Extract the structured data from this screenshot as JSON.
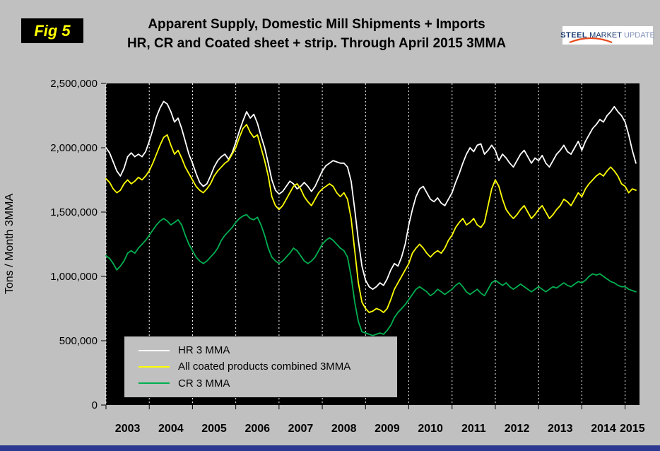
{
  "header": {
    "fig_label": "Fig 5",
    "title_line1": "Apparent Supply, Domestic Mill Shipments + Imports",
    "title_line2": "HR, CR and Coated sheet + strip. Through April 2015 3MMA"
  },
  "logo": {
    "word1": "STEEL",
    "word2": "MARKET",
    "word3": "UPDATE"
  },
  "y_axis_title": "Tons / Month 3MMA",
  "legend": {
    "items": [
      {
        "label": "HR 3 MMA",
        "color": "#ffffff"
      },
      {
        "label": "All coated products combined 3MMA",
        "color": "#ffff00"
      },
      {
        "label": "CR 3 MMA",
        "color": "#00b050"
      }
    ]
  },
  "colors": {
    "page_bg": "#c0c0c0",
    "plot_bg": "#000000",
    "gridline": "#ffffff",
    "bottom_bar": "#2b3990",
    "fig_badge_bg": "#000000",
    "fig_badge_text": "#ffff00",
    "logo_blue": "#16386e",
    "logo_swoosh": "#e8491d"
  },
  "chart_data": {
    "type": "line",
    "title": "Apparent Supply, Domestic Mill Shipments + Imports — HR, CR and Coated sheet + strip. Through April 2015 3MMA",
    "xlabel": "",
    "ylabel": "Tons / Month 3MMA",
    "ylim": [
      0,
      2500000
    ],
    "y_tick_step": 500000,
    "y_tick_labels": [
      "0",
      "500,000",
      "1,000,000",
      "1,500,000",
      "2,000,000",
      "2,500,000"
    ],
    "x_tick_labels": [
      "2003",
      "2004",
      "2005",
      "2006",
      "2007",
      "2008",
      "2009",
      "2010",
      "2011",
      "2012",
      "2013",
      "2014",
      "2015"
    ],
    "x_start": "2003-01",
    "x_end": "2015-04",
    "x_frequency": "monthly",
    "grid": "vertical-dashed",
    "legend_position": "inside-bottom-left",
    "unit": "tons/month",
    "series": [
      {
        "name": "HR 3 MMA",
        "color": "#ffffff",
        "values": [
          2000000,
          1960000,
          1890000,
          1820000,
          1780000,
          1840000,
          1930000,
          1960000,
          1930000,
          1950000,
          1930000,
          1970000,
          2050000,
          2140000,
          2240000,
          2310000,
          2360000,
          2340000,
          2280000,
          2200000,
          2230000,
          2150000,
          2050000,
          1950000,
          1880000,
          1800000,
          1730000,
          1700000,
          1720000,
          1780000,
          1850000,
          1900000,
          1930000,
          1950000,
          1910000,
          1960000,
          2040000,
          2130000,
          2210000,
          2280000,
          2230000,
          2260000,
          2190000,
          2090000,
          2000000,
          1880000,
          1750000,
          1670000,
          1640000,
          1660000,
          1700000,
          1740000,
          1720000,
          1680000,
          1700000,
          1730000,
          1700000,
          1660000,
          1700000,
          1760000,
          1820000,
          1860000,
          1880000,
          1900000,
          1890000,
          1880000,
          1880000,
          1850000,
          1740000,
          1520000,
          1280000,
          1080000,
          970000,
          920000,
          900000,
          920000,
          950000,
          930000,
          980000,
          1050000,
          1100000,
          1080000,
          1150000,
          1250000,
          1400000,
          1520000,
          1620000,
          1680000,
          1700000,
          1650000,
          1600000,
          1580000,
          1610000,
          1570000,
          1550000,
          1600000,
          1650000,
          1730000,
          1800000,
          1880000,
          1950000,
          2000000,
          1970000,
          2020000,
          2030000,
          1950000,
          1980000,
          2020000,
          1980000,
          1900000,
          1950000,
          1920000,
          1880000,
          1850000,
          1900000,
          1950000,
          1980000,
          1930000,
          1880000,
          1920000,
          1900000,
          1940000,
          1880000,
          1850000,
          1900000,
          1950000,
          1980000,
          2020000,
          1970000,
          1950000,
          2000000,
          2050000,
          1980000,
          2050000,
          2100000,
          2150000,
          2180000,
          2220000,
          2200000,
          2250000,
          2280000,
          2320000,
          2280000,
          2250000,
          2200000,
          2100000,
          1980000,
          1880000
        ]
      },
      {
        "name": "All coated products combined 3MMA",
        "color": "#ffff00",
        "values": [
          1760000,
          1730000,
          1680000,
          1650000,
          1670000,
          1720000,
          1750000,
          1720000,
          1740000,
          1770000,
          1750000,
          1780000,
          1820000,
          1880000,
          1950000,
          2020000,
          2080000,
          2100000,
          2020000,
          1950000,
          1980000,
          1920000,
          1850000,
          1800000,
          1750000,
          1700000,
          1670000,
          1650000,
          1680000,
          1720000,
          1780000,
          1820000,
          1850000,
          1880000,
          1900000,
          1950000,
          2000000,
          2080000,
          2150000,
          2180000,
          2120000,
          2080000,
          2100000,
          2000000,
          1900000,
          1780000,
          1620000,
          1550000,
          1520000,
          1550000,
          1600000,
          1650000,
          1700000,
          1720000,
          1680000,
          1620000,
          1580000,
          1550000,
          1600000,
          1650000,
          1680000,
          1700000,
          1720000,
          1700000,
          1650000,
          1620000,
          1650000,
          1600000,
          1450000,
          1200000,
          950000,
          800000,
          750000,
          720000,
          730000,
          750000,
          740000,
          720000,
          750000,
          820000,
          900000,
          950000,
          1000000,
          1050000,
          1100000,
          1180000,
          1220000,
          1250000,
          1220000,
          1180000,
          1150000,
          1180000,
          1200000,
          1180000,
          1220000,
          1280000,
          1320000,
          1380000,
          1420000,
          1450000,
          1400000,
          1420000,
          1450000,
          1400000,
          1380000,
          1420000,
          1550000,
          1680000,
          1750000,
          1700000,
          1600000,
          1520000,
          1480000,
          1450000,
          1480000,
          1520000,
          1550000,
          1500000,
          1450000,
          1480000,
          1520000,
          1550000,
          1500000,
          1450000,
          1480000,
          1520000,
          1550000,
          1600000,
          1580000,
          1550000,
          1600000,
          1650000,
          1620000,
          1680000,
          1720000,
          1750000,
          1780000,
          1800000,
          1780000,
          1820000,
          1850000,
          1820000,
          1780000,
          1720000,
          1700000,
          1650000,
          1680000,
          1670000
        ]
      },
      {
        "name": "CR 3 MMA",
        "color": "#00b050",
        "values": [
          1160000,
          1140000,
          1100000,
          1050000,
          1080000,
          1120000,
          1180000,
          1200000,
          1180000,
          1220000,
          1250000,
          1280000,
          1320000,
          1360000,
          1400000,
          1430000,
          1450000,
          1430000,
          1400000,
          1420000,
          1440000,
          1400000,
          1320000,
          1250000,
          1200000,
          1150000,
          1120000,
          1100000,
          1120000,
          1150000,
          1180000,
          1220000,
          1280000,
          1320000,
          1350000,
          1380000,
          1420000,
          1450000,
          1470000,
          1480000,
          1450000,
          1440000,
          1460000,
          1400000,
          1320000,
          1220000,
          1150000,
          1120000,
          1100000,
          1120000,
          1150000,
          1180000,
          1220000,
          1200000,
          1160000,
          1120000,
          1100000,
          1120000,
          1150000,
          1200000,
          1250000,
          1280000,
          1300000,
          1280000,
          1250000,
          1220000,
          1200000,
          1150000,
          1000000,
          800000,
          650000,
          570000,
          560000,
          550000,
          540000,
          550000,
          560000,
          550000,
          580000,
          620000,
          680000,
          720000,
          750000,
          780000,
          820000,
          860000,
          900000,
          920000,
          900000,
          880000,
          850000,
          870000,
          900000,
          880000,
          860000,
          880000,
          900000,
          930000,
          950000,
          920000,
          880000,
          860000,
          880000,
          900000,
          870000,
          850000,
          900000,
          950000,
          970000,
          950000,
          930000,
          950000,
          920000,
          900000,
          920000,
          940000,
          920000,
          900000,
          880000,
          900000,
          920000,
          900000,
          880000,
          900000,
          920000,
          910000,
          930000,
          950000,
          930000,
          920000,
          940000,
          960000,
          950000,
          970000,
          1000000,
          1020000,
          1010000,
          1020000,
          1000000,
          980000,
          960000,
          950000,
          930000,
          920000,
          920000,
          900000,
          890000,
          880000
        ]
      }
    ]
  }
}
